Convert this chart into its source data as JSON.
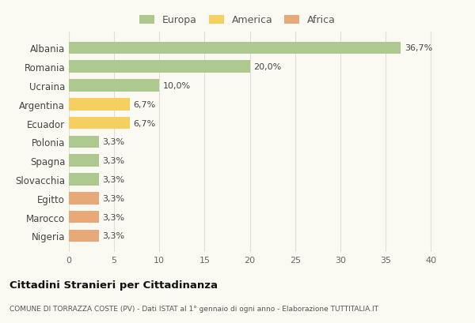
{
  "categories": [
    "Albania",
    "Romania",
    "Ucraina",
    "Argentina",
    "Ecuador",
    "Polonia",
    "Spagna",
    "Slovacchia",
    "Egitto",
    "Marocco",
    "Nigeria"
  ],
  "values": [
    36.7,
    20.0,
    10.0,
    6.7,
    6.7,
    3.3,
    3.3,
    3.3,
    3.3,
    3.3,
    3.3
  ],
  "labels": [
    "36,7%",
    "20,0%",
    "10,0%",
    "6,7%",
    "6,7%",
    "3,3%",
    "3,3%",
    "3,3%",
    "3,3%",
    "3,3%",
    "3,3%"
  ],
  "continents": [
    "Europa",
    "Europa",
    "Europa",
    "America",
    "America",
    "Europa",
    "Europa",
    "Europa",
    "Africa",
    "Africa",
    "Africa"
  ],
  "colors": {
    "Europa": "#adc990",
    "America": "#f5d060",
    "Africa": "#e8a878"
  },
  "legend_labels": [
    "Europa",
    "America",
    "Africa"
  ],
  "legend_colors": [
    "#adc990",
    "#f5d060",
    "#e8a878"
  ],
  "title": "Cittadini Stranieri per Cittadinanza",
  "subtitle": "COMUNE DI TORRAZZA COSTE (PV) - Dati ISTAT al 1° gennaio di ogni anno - Elaborazione TUTTITALIA.IT",
  "xlabel_ticks": [
    0,
    5,
    10,
    15,
    20,
    25,
    30,
    35,
    40
  ],
  "xlim": [
    0,
    42
  ],
  "bg_color": "#fafaf2",
  "grid_color": "#e0e0d0"
}
